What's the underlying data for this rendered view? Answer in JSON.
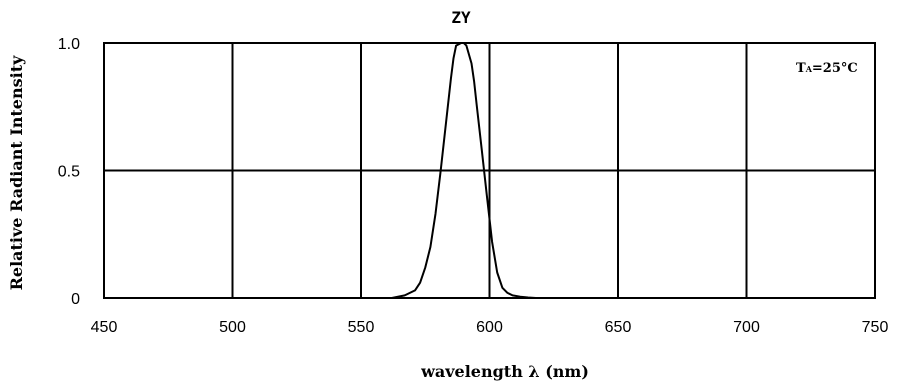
{
  "chart_data": {
    "type": "line",
    "title": "ZY",
    "xlabel": "wavelength λ (nm)",
    "ylabel": "Relative Radiant Intensity",
    "xlim": [
      450,
      750
    ],
    "ylim": [
      0,
      1.0
    ],
    "x_ticks": [
      450,
      500,
      550,
      600,
      650,
      700,
      750
    ],
    "x_tick_labels": [
      "450",
      "500",
      "550",
      "600",
      "650",
      "700",
      "750"
    ],
    "y_ticks": [
      0,
      0.5,
      1.0
    ],
    "y_tick_labels": [
      "0",
      "0.5",
      "1.0"
    ],
    "grid": true,
    "annotation": {
      "main": "T",
      "sub": "A",
      "rest": "=25°C"
    },
    "series": [
      {
        "x": [
          562,
          567,
          571,
          573,
          575,
          577,
          579,
          581,
          583,
          585,
          586,
          587,
          589,
          590,
          591,
          593,
          594,
          595,
          597,
          599,
          601,
          603,
          605,
          607,
          609,
          612,
          615,
          618
        ],
        "y": [
          0.0,
          0.01,
          0.03,
          0.06,
          0.12,
          0.2,
          0.33,
          0.5,
          0.68,
          0.86,
          0.94,
          0.99,
          1.0,
          1.0,
          0.99,
          0.92,
          0.85,
          0.76,
          0.58,
          0.4,
          0.22,
          0.1,
          0.04,
          0.02,
          0.01,
          0.005,
          0.002,
          0.0
        ]
      }
    ]
  }
}
